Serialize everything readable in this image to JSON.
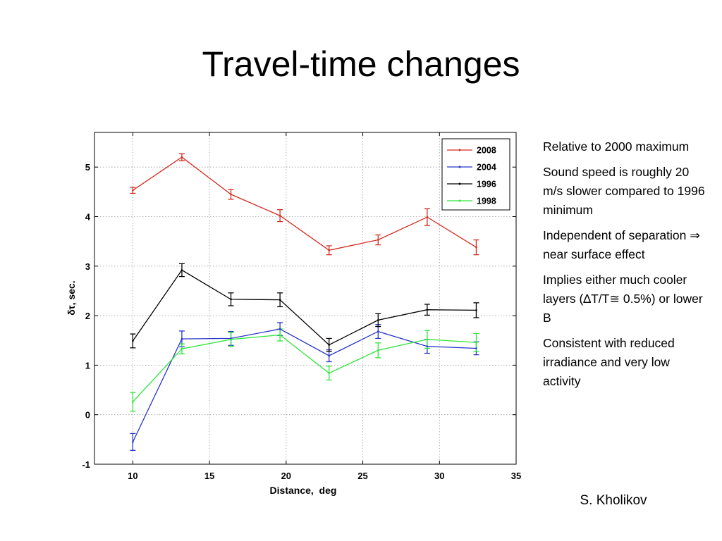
{
  "slide": {
    "title": "Travel-time changes",
    "bullets": [
      "Relative to 2000 maximum",
      "Sound speed is roughly 20 m/s slower compared to 1996 minimum",
      "Independent of separation ⇒ near surface effect",
      "Implies either much cooler layers (∆T/T≅ 0.5%) or lower B",
      "Consistent with reduced irradiance and very low activity"
    ],
    "author": "S. Kholikov"
  },
  "chart_data": {
    "type": "line",
    "xlabel": "Distance,  deg",
    "ylabel": "δτ, sec.",
    "xlim": [
      7.5,
      35
    ],
    "ylim": [
      -1,
      5.7
    ],
    "xticks": [
      10,
      15,
      20,
      25,
      30,
      35
    ],
    "yticks": [
      -1,
      0,
      1,
      2,
      3,
      4,
      5
    ],
    "grid": true,
    "legend": "top-right",
    "x": [
      10,
      13.2,
      16.4,
      19.6,
      22.8,
      26,
      29.2,
      32.4
    ],
    "series": [
      {
        "name": "2008",
        "color": "#d42a20",
        "values": [
          4.53,
          5.2,
          4.45,
          4.02,
          3.32,
          3.53,
          3.99,
          3.38
        ],
        "errors": [
          0.06,
          0.07,
          0.1,
          0.12,
          0.09,
          0.1,
          0.17,
          0.15
        ]
      },
      {
        "name": "2004",
        "color": "#2435c8",
        "values": [
          -0.55,
          1.53,
          1.54,
          1.73,
          1.19,
          1.68,
          1.38,
          1.34
        ],
        "errors": [
          0.17,
          0.16,
          0.14,
          0.13,
          0.12,
          0.14,
          0.14,
          0.13
        ]
      },
      {
        "name": "1996",
        "color": "#000000",
        "values": [
          1.49,
          2.92,
          2.33,
          2.32,
          1.41,
          1.91,
          2.12,
          2.11
        ],
        "errors": [
          0.14,
          0.13,
          0.13,
          0.14,
          0.13,
          0.13,
          0.11,
          0.15
        ]
      },
      {
        "name": "1998",
        "color": "#2ee63a",
        "values": [
          0.26,
          1.33,
          1.52,
          1.61,
          0.84,
          1.3,
          1.52,
          1.46
        ],
        "errors": [
          0.19,
          0.1,
          0.14,
          0.12,
          0.14,
          0.15,
          0.18,
          0.18
        ]
      }
    ]
  }
}
